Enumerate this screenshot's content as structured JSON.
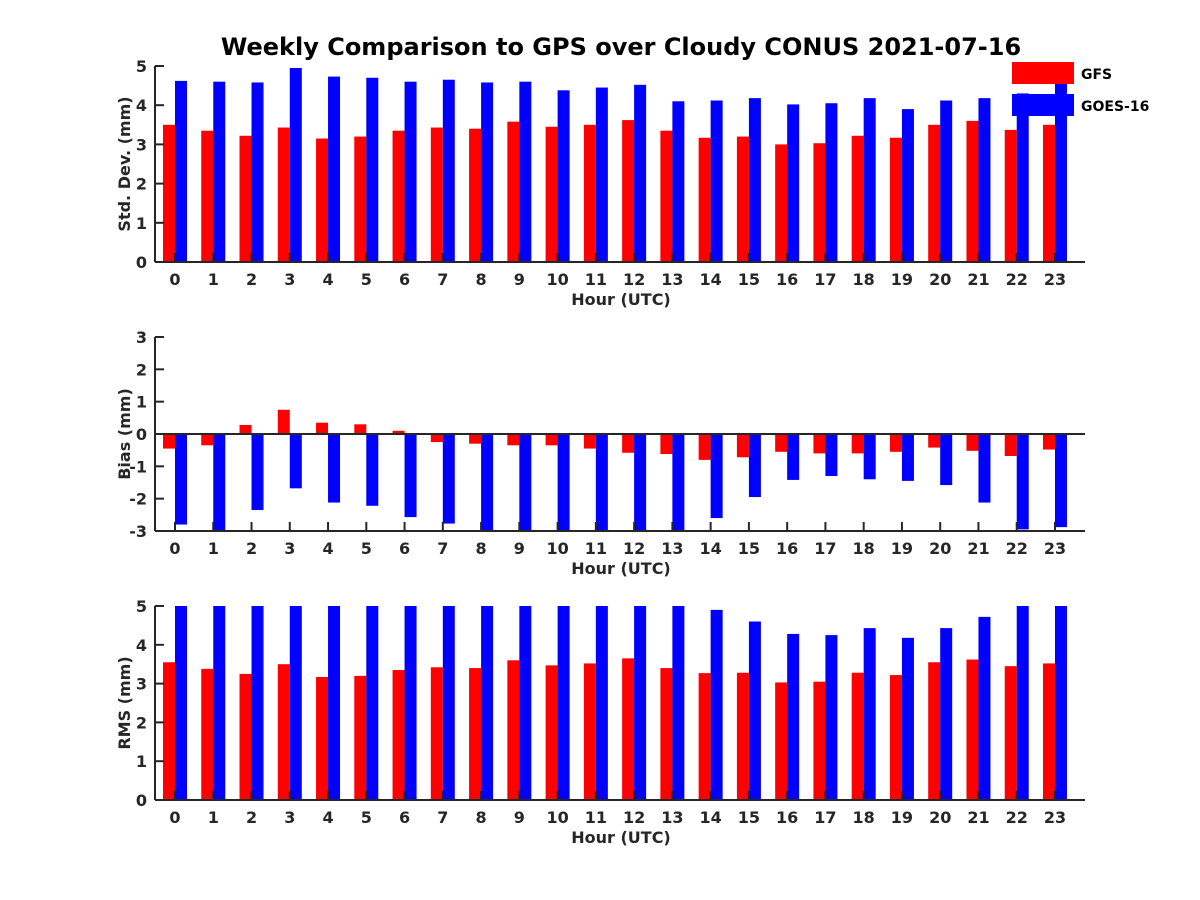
{
  "title": "Weekly Comparison to GPS over Cloudy CONUS 2021-07-16",
  "legend": [
    {
      "name": "GFS",
      "color": "#ff0000"
    },
    {
      "name": "GOES-16",
      "color": "#0000ff"
    }
  ],
  "chart_data": [
    {
      "type": "bar",
      "ylabel": "Std. Dev. (mm)",
      "xlabel": "Hour (UTC)",
      "ylim": [
        0,
        5
      ],
      "yticks": [
        0,
        1,
        2,
        3,
        4,
        5
      ],
      "categories": [
        "0",
        "1",
        "2",
        "3",
        "4",
        "5",
        "6",
        "7",
        "8",
        "9",
        "10",
        "11",
        "12",
        "13",
        "14",
        "15",
        "16",
        "17",
        "18",
        "19",
        "20",
        "21",
        "22",
        "23"
      ],
      "series": [
        {
          "name": "GFS",
          "values": [
            3.5,
            3.35,
            3.22,
            3.43,
            3.15,
            3.2,
            3.35,
            3.43,
            3.4,
            3.58,
            3.45,
            3.5,
            3.62,
            3.35,
            3.17,
            3.2,
            3.0,
            3.03,
            3.22,
            3.17,
            3.5,
            3.6,
            3.37,
            3.5
          ]
        },
        {
          "name": "GOES-16",
          "values": [
            4.62,
            4.6,
            4.58,
            4.95,
            4.73,
            4.7,
            4.6,
            4.65,
            4.58,
            4.6,
            4.38,
            4.45,
            4.52,
            4.1,
            4.12,
            4.18,
            4.02,
            4.05,
            4.18,
            3.9,
            4.12,
            4.18,
            4.3,
            4.65
          ]
        }
      ]
    },
    {
      "type": "bar",
      "ylabel": "Bias (mm)",
      "xlabel": "Hour (UTC)",
      "ylim": [
        -3,
        3
      ],
      "yticks": [
        -3,
        -2,
        -1,
        0,
        1,
        2,
        3
      ],
      "categories": [
        "0",
        "1",
        "2",
        "3",
        "4",
        "5",
        "6",
        "7",
        "8",
        "9",
        "10",
        "11",
        "12",
        "13",
        "14",
        "15",
        "16",
        "17",
        "18",
        "19",
        "20",
        "21",
        "22",
        "23"
      ],
      "series": [
        {
          "name": "GFS",
          "values": [
            -0.45,
            -0.35,
            0.28,
            0.75,
            0.35,
            0.3,
            0.1,
            -0.25,
            -0.3,
            -0.35,
            -0.35,
            -0.45,
            -0.58,
            -0.62,
            -0.8,
            -0.72,
            -0.55,
            -0.6,
            -0.6,
            -0.55,
            -0.42,
            -0.52,
            -0.68,
            -0.48
          ]
        },
        {
          "name": "GOES-16",
          "values": [
            -2.8,
            -3.0,
            -2.35,
            -1.68,
            -2.12,
            -2.22,
            -2.57,
            -2.77,
            -3.0,
            -3.0,
            -3.0,
            -3.0,
            -3.0,
            -3.0,
            -2.6,
            -1.95,
            -1.42,
            -1.3,
            -1.4,
            -1.45,
            -1.58,
            -2.12,
            -2.95,
            -2.88
          ]
        }
      ]
    },
    {
      "type": "bar",
      "ylabel": "RMS (mm)",
      "xlabel": "Hour (UTC)",
      "ylim": [
        0,
        5
      ],
      "yticks": [
        0,
        1,
        2,
        3,
        4,
        5
      ],
      "categories": [
        "0",
        "1",
        "2",
        "3",
        "4",
        "5",
        "6",
        "7",
        "8",
        "9",
        "10",
        "11",
        "12",
        "13",
        "14",
        "15",
        "16",
        "17",
        "18",
        "19",
        "20",
        "21",
        "22",
        "23"
      ],
      "series": [
        {
          "name": "GFS",
          "values": [
            3.55,
            3.38,
            3.25,
            3.5,
            3.17,
            3.2,
            3.35,
            3.42,
            3.4,
            3.6,
            3.47,
            3.52,
            3.65,
            3.4,
            3.27,
            3.28,
            3.03,
            3.05,
            3.28,
            3.22,
            3.55,
            3.62,
            3.45,
            3.52
          ]
        },
        {
          "name": "GOES-16",
          "values": [
            5.0,
            5.0,
            5.0,
            5.0,
            5.0,
            5.0,
            5.0,
            5.0,
            5.0,
            5.0,
            5.0,
            5.0,
            5.0,
            5.0,
            4.9,
            4.6,
            4.28,
            4.25,
            4.43,
            4.18,
            4.43,
            4.72,
            5.0,
            5.0
          ]
        }
      ]
    }
  ]
}
